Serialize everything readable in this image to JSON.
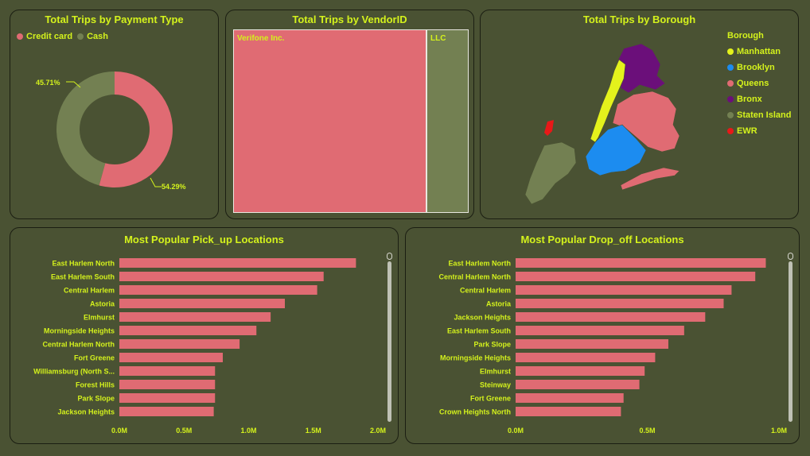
{
  "colors": {
    "accent_text": "#d4f21c",
    "pink": "#e06b73",
    "olive": "#738052",
    "manhattan": "#e4f21c",
    "brooklyn": "#1c8cf0",
    "queens": "#e06b73",
    "bronx": "#6b0f7a",
    "staten_island": "#738052",
    "ewr": "#e81818"
  },
  "payment": {
    "title": "Total Trips by Payment Type",
    "legend": [
      "Credit card",
      "Cash"
    ],
    "label_cash": "45.71%",
    "label_credit": "54.29%"
  },
  "vendor": {
    "title": "Total Trips by VendorID",
    "label_a": "Verifone Inc.",
    "label_b": "LLC"
  },
  "borough": {
    "title": "Total Trips by Borough",
    "legend_title": "Borough",
    "items": [
      "Manhattan",
      "Brooklyn",
      "Queens",
      "Bronx",
      "Staten Island",
      "EWR"
    ]
  },
  "pickup": {
    "title": "Most Popular Pick_up Locations"
  },
  "dropoff": {
    "title": "Most Popular Drop_off Locations"
  },
  "chart_data": [
    {
      "type": "pie",
      "title": "Total Trips by Payment Type",
      "categories": [
        "Credit card",
        "Cash"
      ],
      "values": [
        54.29,
        45.71
      ],
      "unit": "%"
    },
    {
      "type": "bar",
      "title": "Total Trips by VendorID",
      "categories": [
        "Verifone Inc.",
        "LLC"
      ],
      "values": [
        79,
        21
      ]
    },
    {
      "type": "bar",
      "orientation": "horizontal",
      "title": "Most Popular Pick_up Locations",
      "categories": [
        "East Harlem North",
        "East Harlem South",
        "Central Harlem",
        "Astoria",
        "Elmhurst",
        "Morningside Heights",
        "Central Harlem North",
        "Fort Greene",
        "Williamsburg (North S...",
        "Forest Hills",
        "Park Slope",
        "Jackson Heights"
      ],
      "values": [
        1.83,
        1.58,
        1.53,
        1.28,
        1.17,
        1.06,
        0.93,
        0.8,
        0.74,
        0.74,
        0.74,
        0.73
      ],
      "xticks": [
        "0.0M",
        "0.5M",
        "1.0M",
        "1.5M",
        "2.0M"
      ],
      "xlim": [
        0,
        2.0
      ],
      "unit": "M"
    },
    {
      "type": "bar",
      "orientation": "horizontal",
      "title": "Most Popular Drop_off Locations",
      "categories": [
        "East Harlem North",
        "Central Harlem North",
        "Central Harlem",
        "Astoria",
        "Jackson Heights",
        "East Harlem South",
        "Park Slope",
        "Morningside Heights",
        "Elmhurst",
        "Steinway",
        "Fort Greene",
        "Crown Heights North"
      ],
      "values": [
        0.95,
        0.91,
        0.82,
        0.79,
        0.72,
        0.64,
        0.58,
        0.53,
        0.49,
        0.47,
        0.41,
        0.4
      ],
      "xticks": [
        "0.0M",
        "0.5M",
        "1.0M"
      ],
      "xlim": [
        0,
        1.0
      ],
      "unit": "M"
    }
  ]
}
